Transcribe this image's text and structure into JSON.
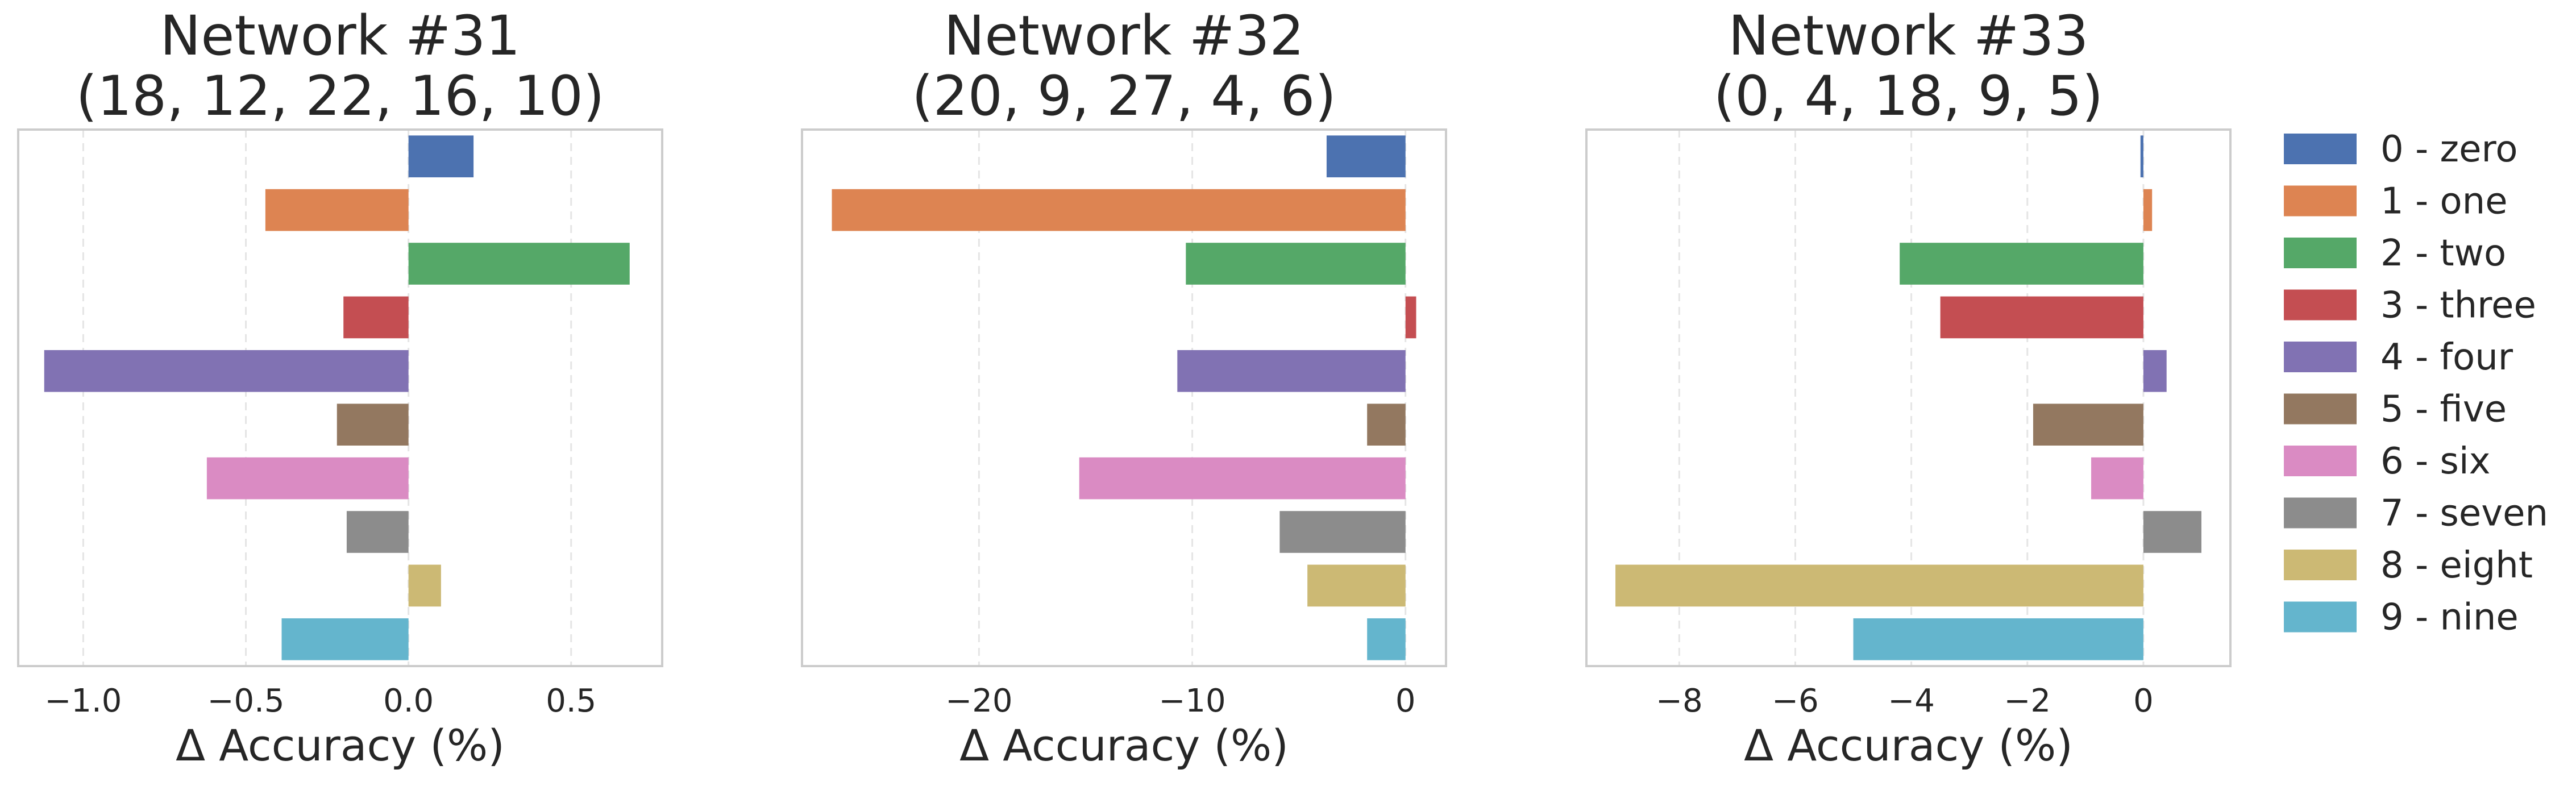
{
  "chart_data": {
    "type": "bar",
    "orientation": "horizontal",
    "categories": [
      "0 - zero",
      "1 - one",
      "2 - two",
      "3 - three",
      "4 - four",
      "5 - five",
      "6 - six",
      "7 - seven",
      "8 - eight",
      "9 - nine"
    ],
    "colors": [
      "#4c72b0",
      "#dd8452",
      "#55a868",
      "#c44e52",
      "#8172b3",
      "#937860",
      "#da8bc3",
      "#8c8c8c",
      "#ccb974",
      "#64b5cd"
    ],
    "legend": {
      "position": "right",
      "entries": [
        "0 - zero",
        "1 - one",
        "2 - two",
        "3 - three",
        "4 - four",
        "5 - five",
        "6 - six",
        "7 - seven",
        "8 - eight",
        "9 - nine"
      ]
    },
    "grid": "x-dashed",
    "panels": [
      {
        "title_line1": "Network #31",
        "title_line2": "(18, 12, 22, 16, 10)",
        "xlabel": "Δ Accuracy (%)",
        "xlim": [
          -1.2,
          0.78
        ],
        "xticks": [
          -1.0,
          -0.5,
          0.0,
          0.5
        ],
        "xtick_labels": [
          "−1.0",
          "−0.5",
          "0.0",
          "0.5"
        ],
        "values": [
          0.2,
          -0.44,
          0.68,
          -0.2,
          -1.12,
          -0.22,
          -0.62,
          -0.19,
          0.1,
          -0.39
        ]
      },
      {
        "title_line1": "Network #32",
        "title_line2": "(20, 9, 27, 4, 6)",
        "xlabel": "Δ Accuracy (%)",
        "xlim": [
          -28.3,
          1.9
        ],
        "xticks": [
          -20,
          -10,
          0
        ],
        "xtick_labels": [
          "−20",
          "−10",
          "0"
        ],
        "values": [
          -3.7,
          -26.9,
          -10.3,
          0.5,
          -10.7,
          -1.8,
          -15.3,
          -5.9,
          -4.6,
          -1.8
        ]
      },
      {
        "title_line1": "Network #33",
        "title_line2": "(0, 4, 18, 9, 5)",
        "xlabel": "Δ Accuracy (%)",
        "xlim": [
          -9.6,
          1.5
        ],
        "xticks": [
          -8,
          -6,
          -4,
          -2,
          0
        ],
        "xtick_labels": [
          "−8",
          "−6",
          "−4",
          "−2",
          "0"
        ],
        "values": [
          -0.05,
          0.15,
          -4.2,
          -3.5,
          0.4,
          -1.9,
          -0.9,
          1.0,
          -9.1,
          -5.0
        ]
      }
    ]
  }
}
